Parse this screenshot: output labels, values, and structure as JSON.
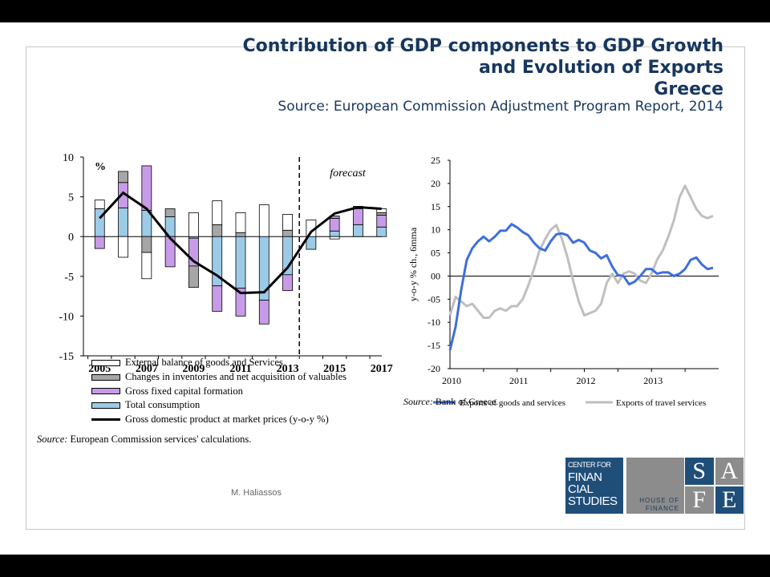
{
  "title_lines": [
    "Contribution of GDP components to GDP Growth",
    "and Evolution of Exports",
    "Greece"
  ],
  "subtitle": "Source: European Commission Adjustment Program Report, 2014",
  "footer": "M. Haliassos",
  "logo": {
    "cfs_lines": [
      "CENTER FOR",
      "FINAN",
      "CIAL",
      "STUDIES"
    ],
    "hof_lines": [
      "HOUSE OF",
      "FINANCE"
    ],
    "safe_letters": [
      "S",
      "A",
      "F",
      "E"
    ],
    "colors": {
      "cfs": "#1f4e79",
      "hof": "#8c8c8c",
      "safe_dark": "#1f4e79",
      "safe_grey": "#8c8c8c"
    }
  },
  "chart_data": [
    {
      "type": "bar",
      "stacked": true,
      "unit_label": "%",
      "annotation": "forecast",
      "years": [
        2005,
        2006,
        2007,
        2008,
        2009,
        2010,
        2011,
        2012,
        2013,
        2014,
        2015,
        2016,
        2017
      ],
      "x_tick_labels": [
        "2005",
        "2007",
        "2009",
        "2011",
        "2013",
        "2015",
        "2017"
      ],
      "y_tick_labels": [
        "10",
        "5",
        "0",
        "-5",
        "-10",
        "-15"
      ],
      "ylim": [
        -15,
        10
      ],
      "forecast_after": 2013,
      "series": [
        {
          "name": "Total consumption",
          "color": "#9ccbe8",
          "values": [
            3.5,
            3.6,
            3.3,
            2.5,
            -0.2,
            -6.2,
            -6.5,
            -8.0,
            -4.8,
            -1.6,
            0.7,
            1.5,
            1.2
          ]
        },
        {
          "name": "Gross fixed capital formation",
          "color": "#c89be8",
          "values": [
            -1.5,
            3.2,
            5.6,
            -3.8,
            -3.5,
            -3.2,
            -3.5,
            -3.0,
            -2.0,
            0.0,
            1.6,
            2.0,
            1.5
          ]
        },
        {
          "name": "Changes in inventories and net acquisition of valuables",
          "color": "#a6a6a6",
          "values": [
            0.0,
            1.4,
            -2.0,
            1.0,
            -2.7,
            1.5,
            0.5,
            0.0,
            0.8,
            0.0,
            0.3,
            0.3,
            0.3
          ]
        },
        {
          "name": "External balance of goods and Services",
          "color": "#ffffff",
          "values": [
            1.1,
            -2.6,
            -3.3,
            0.0,
            3.0,
            3.0,
            2.5,
            4.0,
            2.0,
            2.1,
            -0.3,
            0.0,
            0.5
          ]
        }
      ],
      "line": {
        "name": "Gross domestic product at market prices (y-o-y %)",
        "values": [
          2.3,
          5.5,
          3.5,
          -0.2,
          -3.1,
          -4.9,
          -7.1,
          -7.0,
          -3.9,
          0.6,
          2.9,
          3.7,
          3.5
        ]
      },
      "source": "Source: European Commission services' calculations."
    },
    {
      "type": "line",
      "ylabel": "y-o-y % ch., 6mma",
      "ylim": [
        -20,
        25
      ],
      "y_tick_labels": [
        "25",
        "20",
        "15",
        "10",
        "05",
        "00",
        "-05",
        "-10",
        "-15",
        "-20"
      ],
      "x_tick_labels": [
        "2010",
        "2011",
        "2012",
        "2013"
      ],
      "x_range": [
        2010.0,
        2014.0
      ],
      "series": [
        {
          "name": "Exports of goods and services",
          "color": "#3f6fdc",
          "x": [
            2010.0,
            2010.083,
            2010.167,
            2010.25,
            2010.333,
            2010.417,
            2010.5,
            2010.583,
            2010.667,
            2010.75,
            2010.833,
            2010.917,
            2011.0,
            2011.083,
            2011.167,
            2011.25,
            2011.333,
            2011.417,
            2011.5,
            2011.583,
            2011.667,
            2011.75,
            2011.833,
            2011.917,
            2012.0,
            2012.083,
            2012.167,
            2012.25,
            2012.333,
            2012.417,
            2012.5,
            2012.583,
            2012.667,
            2012.75,
            2012.833,
            2012.917,
            2013.0,
            2013.083,
            2013.167,
            2013.25,
            2013.333,
            2013.417,
            2013.5,
            2013.583,
            2013.667,
            2013.75,
            2013.833,
            2013.917
          ],
          "y": [
            -16,
            -11,
            -3,
            3.5,
            6,
            7.5,
            8.5,
            7.5,
            8.5,
            9.8,
            9.8,
            11.2,
            10.5,
            9.5,
            8.8,
            7.2,
            6,
            5.5,
            7.5,
            9,
            9.2,
            8.8,
            7.2,
            7.8,
            7.2,
            5.5,
            5,
            3.8,
            4.5,
            2,
            0.2,
            0,
            -1.8,
            -1.2,
            0,
            1.5,
            1.5,
            0.5,
            0.8,
            0.8,
            0,
            0.5,
            1.5,
            3.5,
            4,
            2.5,
            1.5,
            1.8
          ]
        },
        {
          "name": "Exports of travel services",
          "color": "#bfbfbf",
          "x": [
            2010.0,
            2010.083,
            2010.167,
            2010.25,
            2010.333,
            2010.417,
            2010.5,
            2010.583,
            2010.667,
            2010.75,
            2010.833,
            2010.917,
            2011.0,
            2011.083,
            2011.167,
            2011.25,
            2011.333,
            2011.417,
            2011.5,
            2011.583,
            2011.667,
            2011.75,
            2011.833,
            2011.917,
            2012.0,
            2012.083,
            2012.167,
            2012.25,
            2012.333,
            2012.417,
            2012.5,
            2012.583,
            2012.667,
            2012.75,
            2012.833,
            2012.917,
            2013.0,
            2013.083,
            2013.167,
            2013.25,
            2013.333,
            2013.417,
            2013.5,
            2013.583,
            2013.667,
            2013.75,
            2013.833,
            2013.917
          ],
          "y": [
            -8.5,
            -4.5,
            -5.5,
            -6.5,
            -6,
            -7.5,
            -9,
            -9,
            -7.5,
            -7,
            -7.5,
            -6.5,
            -6.5,
            -5,
            -2,
            1.5,
            5.5,
            8,
            10,
            11,
            8,
            4,
            -1,
            -5.5,
            -8.5,
            -8,
            -7.5,
            -6,
            -1.5,
            0.5,
            -1.5,
            0.5,
            1,
            0.5,
            -1,
            -1.5,
            0.5,
            3.5,
            5.5,
            8.5,
            12,
            17,
            19.5,
            17,
            14.5,
            13,
            12.5,
            13
          ]
        }
      ],
      "source_label": "Source:",
      "source_text": "Bank of Greece."
    }
  ]
}
